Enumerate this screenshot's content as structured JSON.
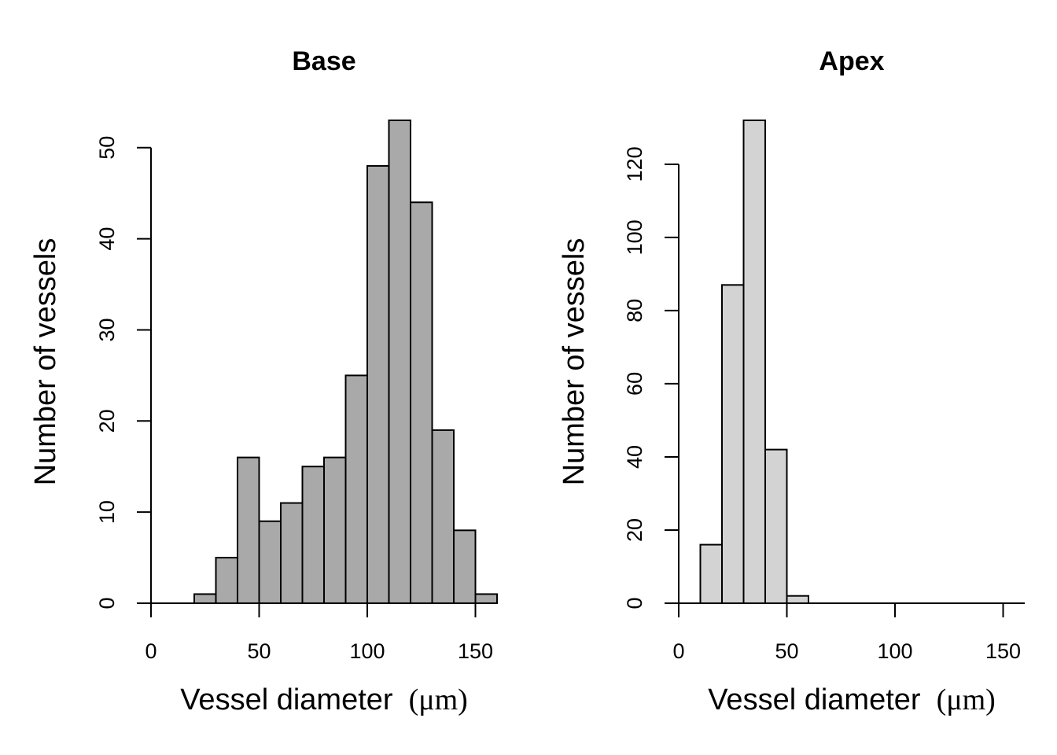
{
  "chart_data": [
    {
      "type": "bar",
      "title": "Base",
      "xlabel": "Vessel diameter",
      "xlabel_unit": "(μm)",
      "ylabel": "Number of vessels",
      "bin_edges": [
        0,
        10,
        20,
        30,
        40,
        50,
        60,
        70,
        80,
        90,
        100,
        110,
        120,
        130,
        140,
        150,
        160
      ],
      "values": [
        0,
        0,
        1,
        5,
        16,
        9,
        11,
        15,
        16,
        25,
        48,
        53,
        44,
        19,
        8,
        1
      ],
      "xlim": [
        0,
        160
      ],
      "ylim": [
        0,
        53
      ],
      "xticks": [
        0,
        50,
        100,
        150
      ],
      "yticks": [
        0,
        10,
        20,
        30,
        40,
        50
      ],
      "bar_color": "#a9a9a9",
      "grid": false
    },
    {
      "type": "bar",
      "title": "Apex",
      "xlabel": "Vessel diameter",
      "xlabel_unit": "(μm)",
      "ylabel": "Number of vessels",
      "bin_edges": [
        0,
        10,
        20,
        30,
        40,
        50,
        60,
        70,
        80,
        90,
        100,
        110,
        120,
        130,
        140,
        150,
        160
      ],
      "values": [
        0,
        16,
        87,
        132,
        42,
        2,
        0,
        0,
        0,
        0,
        0,
        0,
        0,
        0,
        0,
        0
      ],
      "xlim": [
        0,
        160
      ],
      "ylim": [
        0,
        132
      ],
      "xticks": [
        0,
        50,
        100,
        150
      ],
      "yticks": [
        0,
        20,
        40,
        60,
        80,
        100,
        120
      ],
      "bar_color": "#d3d3d3",
      "grid": false
    }
  ]
}
